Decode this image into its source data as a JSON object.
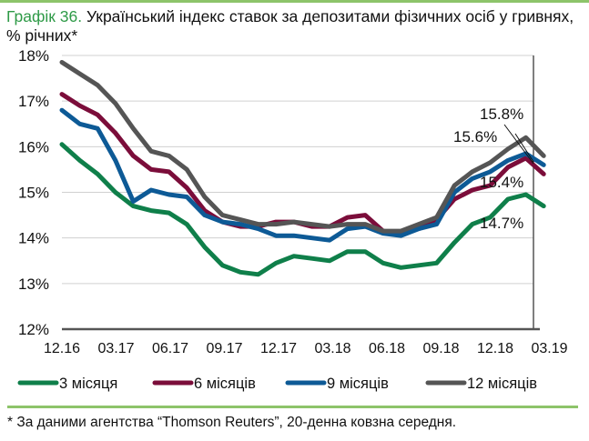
{
  "title_number": "Графік 36.",
  "title_text": " Український індекс ставок за депозитами фізичних осіб у гривнях, % річних*",
  "footnote": "* За даними агентства “Thomson Reuters”, 20-денна ковзна середня.",
  "chart_data": {
    "type": "line",
    "x_tick_labels": [
      "12.16",
      "03.17",
      "06.17",
      "09.17",
      "12.17",
      "03.18",
      "06.18",
      "09.18",
      "12.18",
      "03.19"
    ],
    "y_tick_labels": [
      "12%",
      "13%",
      "14%",
      "15%",
      "16%",
      "17%",
      "18%"
    ],
    "ylim": [
      12,
      18
    ],
    "grid": true,
    "legend_placement": "bottom",
    "x": [
      "12.16",
      "01.17",
      "02.17",
      "03.17",
      "04.17",
      "05.17",
      "06.17",
      "07.17",
      "08.17",
      "09.17",
      "10.17",
      "11.17",
      "12.17",
      "01.18",
      "02.18",
      "03.18",
      "04.18",
      "05.18",
      "06.18",
      "07.18",
      "08.18",
      "09.18",
      "10.18",
      "11.18",
      "12.18",
      "01.19",
      "02.19",
      "03.19"
    ],
    "series": [
      {
        "name": "3 місяця",
        "color": "#0f7f4a",
        "values": [
          16.05,
          15.7,
          15.4,
          15.0,
          14.7,
          14.6,
          14.55,
          14.3,
          13.8,
          13.4,
          13.25,
          13.2,
          13.45,
          13.6,
          13.55,
          13.5,
          13.7,
          13.7,
          13.45,
          13.35,
          13.4,
          13.45,
          13.9,
          14.3,
          14.45,
          14.85,
          14.95,
          14.7
        ]
      },
      {
        "name": "6 місяців",
        "color": "#7b0d3a",
        "values": [
          17.15,
          16.9,
          16.7,
          16.3,
          15.8,
          15.5,
          15.45,
          15.1,
          14.6,
          14.35,
          14.25,
          14.25,
          14.35,
          14.35,
          14.25,
          14.25,
          14.45,
          14.5,
          14.15,
          14.1,
          14.2,
          14.4,
          14.85,
          15.05,
          15.15,
          15.55,
          15.75,
          15.4
        ]
      },
      {
        "name": "9 місяців",
        "color": "#0d5a96",
        "values": [
          16.8,
          16.5,
          16.4,
          15.7,
          14.8,
          15.05,
          14.95,
          14.9,
          14.5,
          14.35,
          14.3,
          14.2,
          14.05,
          14.05,
          14.0,
          13.95,
          14.2,
          14.25,
          14.1,
          14.05,
          14.2,
          14.3,
          15.0,
          15.3,
          15.45,
          15.7,
          15.85,
          15.6
        ]
      },
      {
        "name": "12 місяців",
        "color": "#555555",
        "values": [
          17.85,
          17.6,
          17.35,
          16.95,
          16.4,
          15.9,
          15.8,
          15.5,
          14.9,
          14.5,
          14.4,
          14.3,
          14.3,
          14.35,
          14.3,
          14.25,
          14.3,
          14.3,
          14.15,
          14.15,
          14.3,
          14.45,
          15.15,
          15.45,
          15.65,
          15.95,
          16.2,
          15.8
        ]
      }
    ],
    "annotations": [
      "15.8%",
      "15.6%",
      "15.4%",
      "14.7%"
    ]
  }
}
